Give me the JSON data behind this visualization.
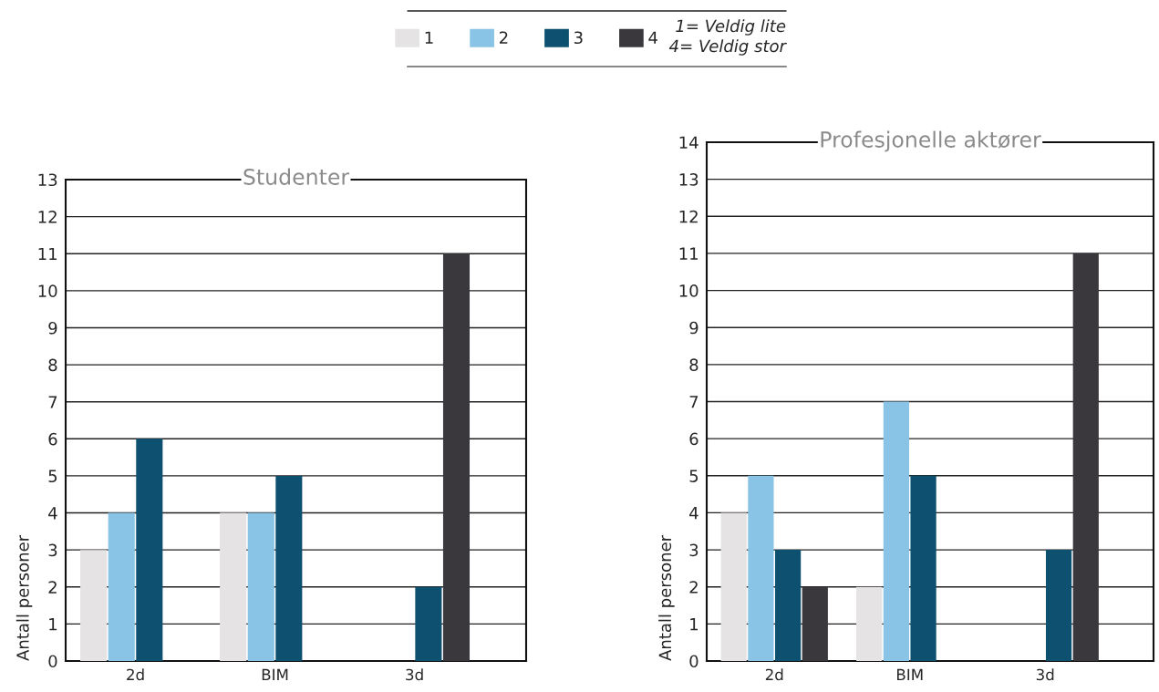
{
  "chart_data": [
    {
      "type": "bar",
      "title": "Studenter",
      "ylabel": "Antall personer",
      "categories": [
        "2d",
        "BIM",
        "3d"
      ],
      "series": [
        {
          "name": "1",
          "color": "#e5e3e4",
          "values": [
            3,
            4,
            0
          ]
        },
        {
          "name": "2",
          "color": "#89c4e6",
          "values": [
            4,
            4,
            0
          ]
        },
        {
          "name": "3",
          "color": "#0d5070",
          "values": [
            6,
            5,
            2
          ]
        },
        {
          "name": "4",
          "color": "#3a383d",
          "values": [
            0,
            0,
            11
          ]
        }
      ],
      "ylim": [
        0,
        13
      ],
      "yticks": [
        0,
        1,
        2,
        3,
        4,
        5,
        6,
        7,
        8,
        9,
        10,
        11,
        12,
        13
      ],
      "grid": "y",
      "legend": "top",
      "annotations": [
        "1= Veldig lite",
        "4= Veldig stor"
      ]
    },
    {
      "type": "bar",
      "title": "Profesjonelle aktører",
      "ylabel": "Antall personer",
      "categories": [
        "2d",
        "BIM",
        "3d"
      ],
      "series": [
        {
          "color": "#e5e3e4",
          "values": [
            4,
            2,
            0
          ]
        },
        {
          "color": "#89c4e6",
          "values": [
            5,
            7,
            0
          ]
        },
        {
          "color": "#0d5070",
          "values": [
            3,
            5,
            3
          ]
        },
        {
          "color": "#3a383d",
          "values": [
            2,
            0,
            11
          ]
        }
      ],
      "ylim": [
        0,
        14
      ],
      "yticks": [
        0,
        1,
        2,
        3,
        4,
        5,
        6,
        7,
        8,
        9,
        10,
        11,
        12,
        13,
        14
      ],
      "grid": "y"
    }
  ]
}
